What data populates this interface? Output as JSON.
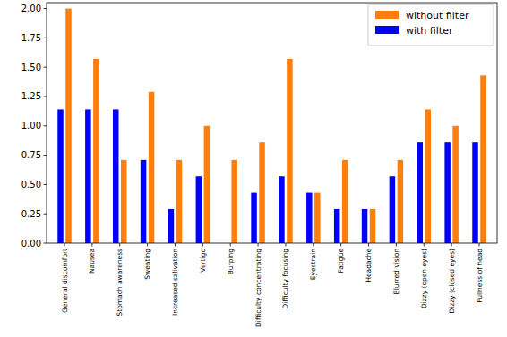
{
  "chart_data": {
    "type": "bar",
    "categories": [
      "General discomfort",
      "Nausea",
      "Stomach awareness",
      "Sweating",
      "Increased salivation",
      "Vertigo",
      "Burping",
      "Difficulty concentrating",
      "Difficulty focusing",
      "Eyestrain",
      "Fatigue",
      "Headache",
      "Blurred vision",
      "Dizzy (open eyes)",
      "Dizzy (closed eyes)",
      "Fullness of head"
    ],
    "series": [
      {
        "name": "without filter",
        "color": "#ff7f0e",
        "values": [
          2.0,
          1.57,
          0.71,
          1.29,
          0.71,
          1.0,
          0.71,
          0.86,
          1.57,
          0.43,
          0.71,
          0.29,
          0.71,
          1.14,
          1.0,
          1.43
        ]
      },
      {
        "name": "with filter",
        "color": "#0000ff",
        "values": [
          1.14,
          1.14,
          1.14,
          0.71,
          0.29,
          0.57,
          0,
          0.43,
          0.57,
          0.43,
          0.29,
          0.29,
          0.57,
          0.86,
          0.86,
          0.86
        ]
      }
    ],
    "ylim": [
      0,
      2.05
    ],
    "yticks": [
      {
        "value": 0,
        "label": "0.00"
      },
      {
        "value": 0.25,
        "label": "0.25"
      },
      {
        "value": 0.5,
        "label": "0.50"
      },
      {
        "value": 0.75,
        "label": "0.75"
      },
      {
        "value": 1.0,
        "label": "1.00"
      },
      {
        "value": 1.25,
        "label": "1.25"
      },
      {
        "value": 1.5,
        "label": "1.50"
      },
      {
        "value": 1.75,
        "label": "1.75"
      },
      {
        "value": 2.0,
        "label": "2.00"
      }
    ],
    "grid": false,
    "legend": "upper right"
  }
}
